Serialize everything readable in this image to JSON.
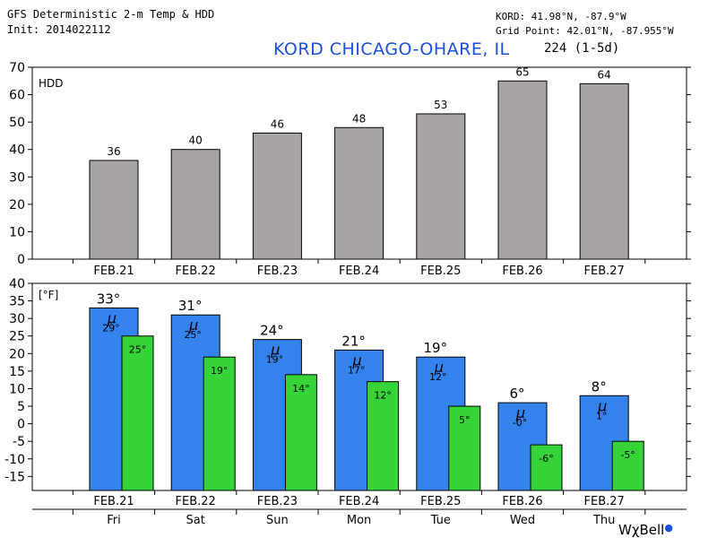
{
  "header": {
    "model_title": "GFS Deterministic 2-m Temp & HDD",
    "init": "Init: 2014022112",
    "station_coords": "KORD: 41.98°N, -87.9°W",
    "grid_point": "Grid Point: 42.01°N, -87.955°W",
    "station_name": "KORD CHICAGO-OHARE, IL",
    "run_info": "224 (1-5d)"
  },
  "logo": {
    "text": "WχBell",
    "dot": "●"
  },
  "colors": {
    "hdd_bar": "#a8a4a4",
    "max_bar": "#3483ec",
    "min_bar": "#36d339",
    "title_blue": "#1a4fd8"
  },
  "chart_data": [
    {
      "type": "bar",
      "title": "HDD",
      "categories": [
        "FEB.21",
        "FEB.22",
        "FEB.23",
        "FEB.24",
        "FEB.25",
        "FEB.26",
        "FEB.27"
      ],
      "values": [
        36,
        40,
        46,
        48,
        53,
        65,
        64
      ],
      "data_labels": [
        "36",
        "40",
        "46",
        "48",
        "53",
        "65",
        "64"
      ],
      "ylim": [
        0,
        70
      ],
      "yticks": [
        0,
        10,
        20,
        30,
        40,
        50,
        60,
        70
      ],
      "grid": false
    },
    {
      "type": "bar",
      "title": "[°F]",
      "categories": [
        "FEB.21",
        "FEB.22",
        "FEB.23",
        "FEB.24",
        "FEB.25",
        "FEB.26",
        "FEB.27"
      ],
      "days": [
        "Fri",
        "Sat",
        "Sun",
        "Mon",
        "Tue",
        "Wed",
        "Thu"
      ],
      "mean_symbol": "μ",
      "series": [
        {
          "values": [
            33,
            31,
            24,
            21,
            19,
            6,
            8
          ],
          "labels": [
            "33°",
            "31°",
            "24°",
            "21°",
            "19°",
            "6°",
            "8°"
          ]
        },
        {
          "values": [
            25,
            19,
            14,
            12,
            5,
            -6,
            -5
          ],
          "labels": [
            "25°",
            "19°",
            "14°",
            "12°",
            "5°",
            "-6°",
            "-5°"
          ]
        }
      ],
      "means": [
        "29°",
        "25°",
        "19°",
        "17°",
        "12°",
        "-0°",
        "1°"
      ],
      "ylim": [
        -19,
        40
      ],
      "yticks": [
        -15,
        -10,
        -5,
        0,
        5,
        10,
        15,
        20,
        25,
        30,
        35,
        40
      ],
      "grid": false
    }
  ]
}
